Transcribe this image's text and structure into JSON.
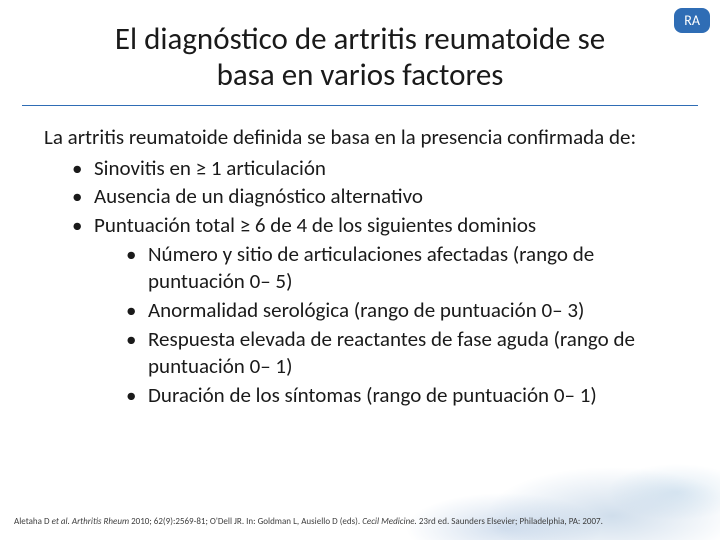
{
  "colors": {
    "badge_bg": "#2f6db5",
    "badge_text": "#ffffff",
    "title_text": "#1a1a1a",
    "rule": "#2f6db5",
    "body_text": "#1a1a1a",
    "footer_text": "#404040"
  },
  "badge": {
    "label": "RA"
  },
  "title": {
    "line1": "El diagnóstico de artritis reumatoide se",
    "line2": "basa en varios factores"
  },
  "intro": "La artritis reumatoide definida se basa en la presencia confirmada de:",
  "bullets": {
    "b1": "Sinovitis en ≥ 1 articulación",
    "b2": "Ausencia de un diagnóstico alternativo",
    "b3": "Puntuación total ≥ 6 de 4 de los siguientes dominios",
    "sub": {
      "s1": "Número y sitio de articulaciones afectadas (rango de puntuación 0– 5)",
      "s2": "Anormalidad serológica (rango de puntuación 0– 3)",
      "s3": "Respuesta elevada de reactantes de fase aguda (rango de puntuación 0– 1)",
      "s4": "Duración de los síntomas (rango de puntuación 0– 1)"
    }
  },
  "footer": {
    "seg1": "Aletaha D ",
    "seg2_ital": "et al. Arthritis Rheum",
    "seg3": " 2010; 62(9):2569-81; O'Dell JR. In: Goldman L, Ausiello D (eds). ",
    "seg4_ital": "Cecil Medicine.",
    "seg5": " 23rd ed. Saunders Elsevier; Philadelphia, PA: 2007."
  }
}
